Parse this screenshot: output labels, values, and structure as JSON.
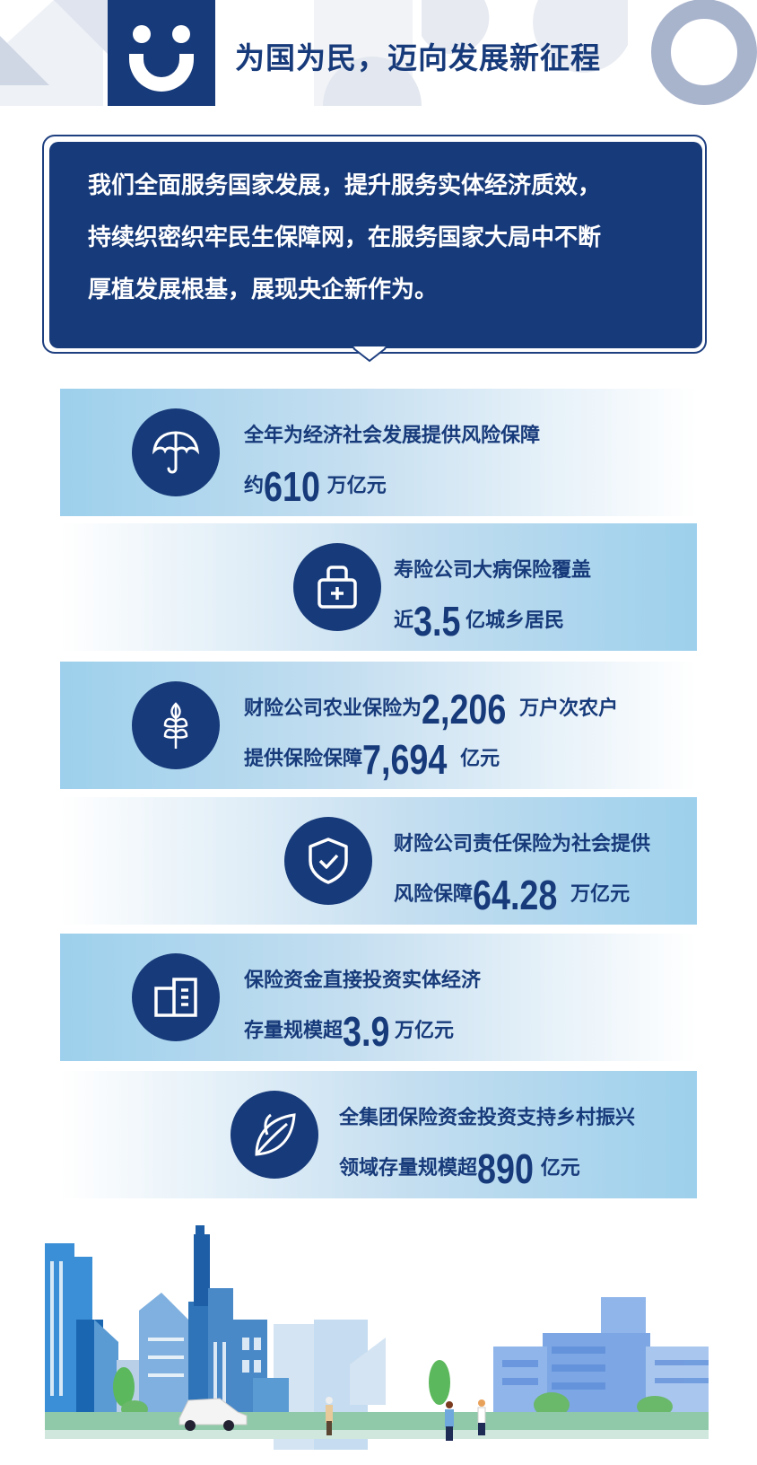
{
  "header": {
    "title": "为国为民，迈向发展新征程",
    "logo_icon": "smiley-icon"
  },
  "intro": {
    "lines": [
      "我们全面服务国家发展，提升服务实体经济质效，",
      "持续织密织牢民生保障网，在服务国家大局中不断",
      "厚植发展根基，展现央企新作为。"
    ]
  },
  "colors": {
    "navy": "#173a7a",
    "band_blue": "#9dd0ec"
  },
  "stats": [
    {
      "icon": "umbrella-icon",
      "side": "left",
      "lines": [
        [
          {
            "t": "全年为经济社会发展提供风险保障"
          }
        ],
        [
          {
            "t": "约"
          },
          {
            "t": "610",
            "big": true
          },
          {
            "t": "万亿元"
          }
        ]
      ]
    },
    {
      "icon": "medical-kit-icon",
      "side": "right",
      "lines": [
        [
          {
            "t": "寿险公司大病保险覆盖"
          }
        ],
        [
          {
            "t": "近"
          },
          {
            "t": "3.5",
            "big": true
          },
          {
            "t": "亿城乡居民"
          }
        ]
      ]
    },
    {
      "icon": "wheat-icon",
      "side": "left",
      "lines": [
        [
          {
            "t": "财险公司农业保险为"
          },
          {
            "t": "2,206",
            "big": true
          },
          {
            "t": "万户次农户"
          }
        ],
        [
          {
            "t": "提供保险保障"
          },
          {
            "t": "7,694",
            "big": true
          },
          {
            "t": "亿元"
          }
        ]
      ]
    },
    {
      "icon": "shield-check-icon",
      "side": "right",
      "lines": [
        [
          {
            "t": "财险公司责任保险为社会提供"
          }
        ],
        [
          {
            "t": "风险保障"
          },
          {
            "t": "64.28",
            "big": true
          },
          {
            "t": "万亿元"
          }
        ]
      ]
    },
    {
      "icon": "document-folder-icon",
      "side": "left",
      "lines": [
        [
          {
            "t": "保险资金直接投资实体经济"
          }
        ],
        [
          {
            "t": "存量规模超"
          },
          {
            "t": "3.9",
            "big": true
          },
          {
            "t": "万亿元"
          }
        ]
      ]
    },
    {
      "icon": "leaf-icon",
      "side": "right",
      "lines": [
        [
          {
            "t": "全集团保险资金投资支持乡村振兴"
          }
        ],
        [
          {
            "t": "领域存量规模超"
          },
          {
            "t": "890",
            "big": true
          },
          {
            "t": "亿元"
          }
        ]
      ]
    }
  ]
}
